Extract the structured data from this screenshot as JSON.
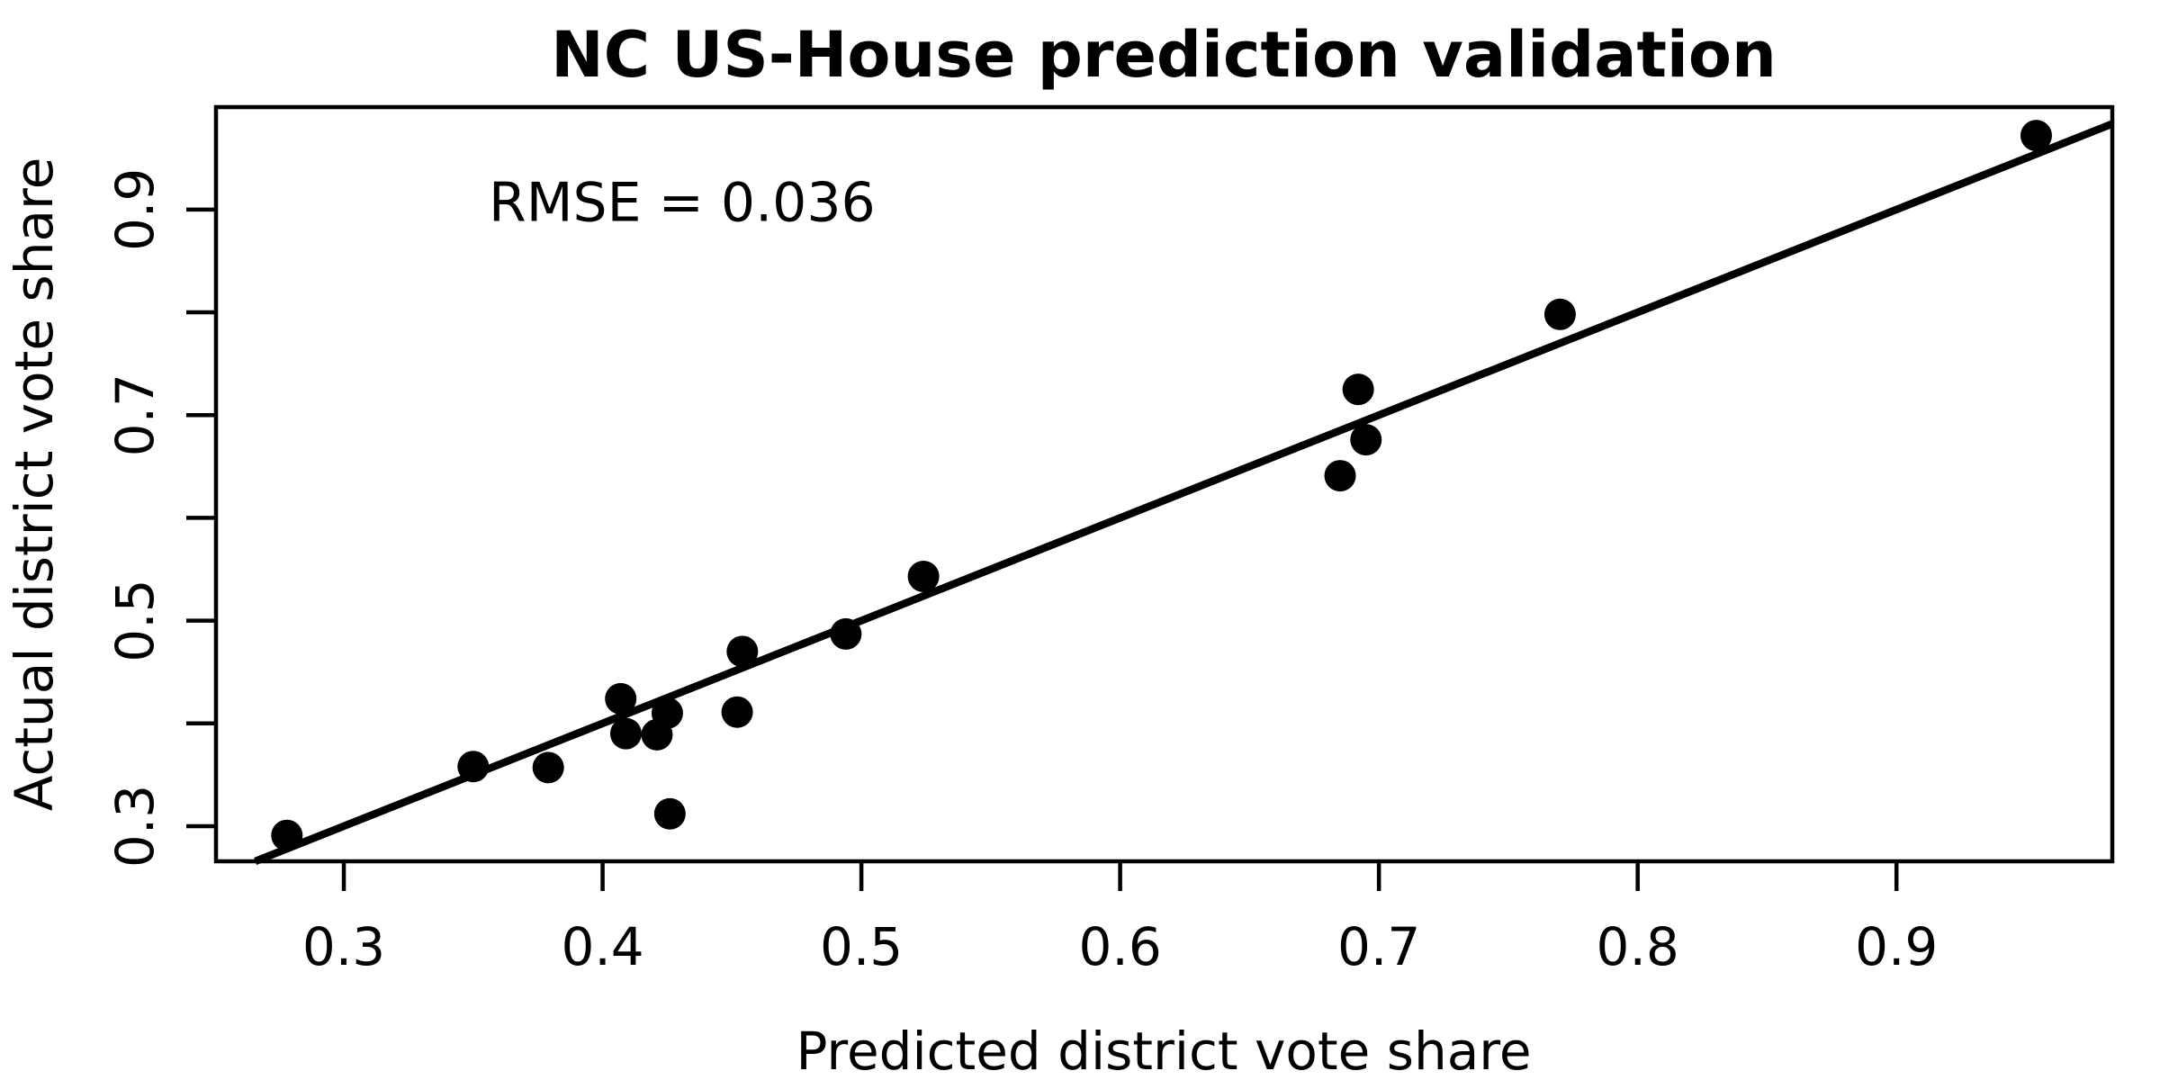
{
  "chart_data": {
    "type": "scatter",
    "title": "NC US-House prediction validation",
    "xlabel": "Predicted district vote share",
    "ylabel": "Actual district vote share",
    "annotation": {
      "text": "RMSE = 0.036",
      "x": 0.356,
      "y": 0.889
    },
    "xlim": [
      0.2506,
      0.9834
    ],
    "ylim": [
      0.2658,
      0.9997
    ],
    "x_ticks": {
      "values": [
        0.3,
        0.4,
        0.5,
        0.6,
        0.7,
        0.8,
        0.9
      ],
      "labels": [
        "0.3",
        "0.4",
        "0.5",
        "0.6",
        "0.7",
        "0.8",
        "0.9"
      ]
    },
    "y_ticks": {
      "values": [
        0.3,
        0.4,
        0.5,
        0.6,
        0.7,
        0.8,
        0.9
      ],
      "labels": [
        "0.3",
        "",
        "0.5",
        "",
        "0.7",
        "",
        "0.9"
      ]
    },
    "grid": false,
    "legend": "none",
    "points": [
      [
        0.278,
        0.291
      ],
      [
        0.35,
        0.358
      ],
      [
        0.379,
        0.357
      ],
      [
        0.407,
        0.424
      ],
      [
        0.409,
        0.39
      ],
      [
        0.421,
        0.389
      ],
      [
        0.425,
        0.41
      ],
      [
        0.426,
        0.312
      ],
      [
        0.452,
        0.411
      ],
      [
        0.454,
        0.47
      ],
      [
        0.494,
        0.487
      ],
      [
        0.524,
        0.543
      ],
      [
        0.685,
        0.641
      ],
      [
        0.692,
        0.725
      ],
      [
        0.695,
        0.676
      ],
      [
        0.77,
        0.798
      ],
      [
        0.954,
        0.972
      ]
    ],
    "reference_line": {
      "slope": 1,
      "intercept": 0
    },
    "colors": {
      "points": "#000000",
      "line": "#000000",
      "axis": "#000000",
      "background": "#ffffff"
    }
  }
}
